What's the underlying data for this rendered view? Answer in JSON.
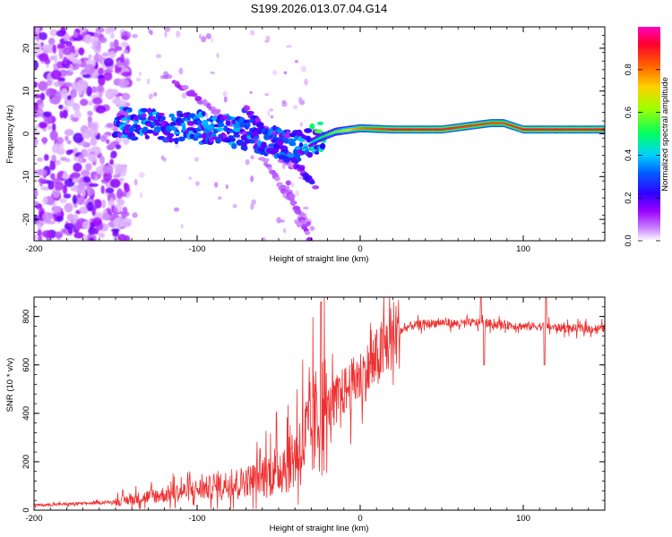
{
  "figure_title": "S199.2026.013.07.04.G14",
  "chart_data": [
    {
      "type": "heatmap",
      "xlabel": "Height of straight line (km)",
      "ylabel": "Frequency (Hz)",
      "xlim": [
        -200,
        150
      ],
      "ylim": [
        -25,
        25
      ],
      "xticks": [
        -200,
        -100,
        0,
        100
      ],
      "xtick_labels": [
        "-200",
        "-100",
        "0",
        "100"
      ],
      "yticks": [
        -20,
        -10,
        0,
        10,
        20
      ],
      "ytick_labels": [
        "-20",
        "-10",
        "0",
        "10",
        "20"
      ],
      "colorbar": {
        "label": "Normalized spectral amplitude",
        "range": [
          0,
          1
        ],
        "ticks": [
          0.0,
          0.2,
          0.4,
          0.6,
          0.8
        ],
        "tick_labels": [
          "0.0",
          "0.2",
          "0.4",
          "0.6",
          "0.8"
        ],
        "colormap": [
          "#ffffff",
          "#a000ff",
          "#0000ff",
          "#00c0ff",
          "#00ff40",
          "#ffff00",
          "#ff8000",
          "#ff0000",
          "#ff00c0"
        ]
      },
      "ridge": {
        "description": "main spectral line",
        "x": [
          -145,
          -120,
          -100,
          -80,
          -60,
          -45,
          -35,
          -25,
          -15,
          0,
          20,
          50,
          80,
          88,
          100,
          130,
          150
        ],
        "freq_hz": [
          2.5,
          2.0,
          1.5,
          0.5,
          -1.0,
          -2.5,
          -3.0,
          -1.0,
          0.5,
          1.3,
          1.0,
          1.0,
          2.5,
          2.5,
          1.0,
          1.0,
          1.0
        ],
        "amplitude": [
          0.35,
          0.35,
          0.35,
          0.35,
          0.35,
          0.3,
          0.35,
          0.5,
          0.6,
          0.8,
          0.9,
          0.9,
          0.85,
          0.85,
          0.9,
          0.9,
          0.9
        ]
      }
    },
    {
      "type": "line",
      "xlabel": "Height of straight line (km)",
      "ylabel": "SNR (10 * v/v)",
      "xlim": [
        -200,
        150
      ],
      "ylim": [
        0,
        880
      ],
      "xticks": [
        -200,
        -100,
        0,
        100
      ],
      "xtick_labels": [
        "-200",
        "-100",
        "0",
        "100"
      ],
      "yticks": [
        0,
        200,
        400,
        600,
        800
      ],
      "ytick_labels": [
        "0",
        "200",
        "400",
        "600",
        "800"
      ],
      "color": "#ee3030",
      "series": [
        {
          "name": "SNR",
          "x": [
            -200,
            -180,
            -160,
            -150,
            -140,
            -130,
            -120,
            -110,
            -100,
            -90,
            -80,
            -70,
            -60,
            -50,
            -45,
            -40,
            -35,
            -30,
            -25,
            -20,
            -15,
            -10,
            -5,
            0,
            5,
            10,
            15,
            20,
            25,
            30,
            40,
            50,
            60,
            70,
            80,
            90,
            100,
            110,
            120,
            130,
            140,
            150
          ],
          "y": [
            20,
            25,
            30,
            35,
            45,
            55,
            65,
            75,
            85,
            95,
            110,
            120,
            140,
            170,
            200,
            230,
            280,
            330,
            380,
            420,
            460,
            490,
            520,
            550,
            580,
            620,
            670,
            720,
            740,
            760,
            770,
            775,
            770,
            775,
            770,
            765,
            760,
            760,
            755,
            750,
            750,
            750
          ]
        }
      ]
    }
  ]
}
